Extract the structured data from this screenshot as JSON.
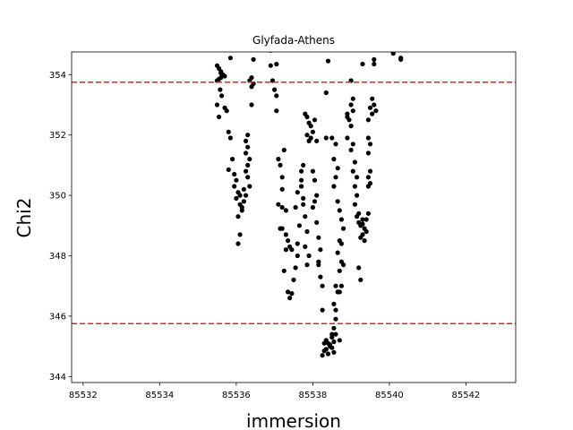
{
  "chart_data": {
    "type": "scatter",
    "title": "Glyfada-Athens",
    "xlabel": "immersion",
    "ylabel": "Chi2",
    "xlim": [
      85531.7,
      85543.3
    ],
    "ylim": [
      343.8,
      354.75
    ],
    "xticks": [
      85532,
      85534,
      85536,
      85538,
      85540,
      85542
    ],
    "yticks": [
      344,
      346,
      348,
      350,
      352,
      354
    ],
    "grid": false,
    "legend": "none",
    "marker_color": "#000000",
    "hlines": [
      {
        "y": 353.75,
        "color": "#d62728",
        "style": "dashed"
      },
      {
        "y": 345.75,
        "color": "#d62728",
        "style": "dashed"
      }
    ],
    "points": [
      [
        85535.5,
        354.3
      ],
      [
        85535.55,
        354.2
      ],
      [
        85535.6,
        354.1
      ],
      [
        85535.65,
        354.0
      ],
      [
        85535.6,
        353.9
      ],
      [
        85535.55,
        353.85
      ],
      [
        85535.7,
        353.95
      ],
      [
        85535.5,
        353.8
      ],
      [
        85535.58,
        353.5
      ],
      [
        85535.62,
        353.3
      ],
      [
        85535.5,
        353.0
      ],
      [
        85535.7,
        352.9
      ],
      [
        85535.75,
        352.8
      ],
      [
        85535.55,
        352.6
      ],
      [
        85535.85,
        354.55
      ],
      [
        85535.6,
        354.05
      ],
      [
        85535.8,
        352.1
      ],
      [
        85535.85,
        351.9
      ],
      [
        85535.9,
        351.2
      ],
      [
        85535.95,
        350.7
      ],
      [
        85535.8,
        350.85
      ],
      [
        85536.0,
        350.5
      ],
      [
        85535.95,
        350.3
      ],
      [
        85536.05,
        350.1
      ],
      [
        85536.1,
        350.0
      ],
      [
        85536.0,
        349.9
      ],
      [
        85536.1,
        349.7
      ],
      [
        85536.15,
        349.5
      ],
      [
        85536.05,
        349.3
      ],
      [
        85536.2,
        349.8
      ],
      [
        85536.2,
        350.2
      ],
      [
        85536.25,
        350.0
      ],
      [
        85536.1,
        348.7
      ],
      [
        85536.05,
        348.4
      ],
      [
        85536.15,
        349.6
      ],
      [
        85536.3,
        352.0
      ],
      [
        85536.25,
        351.8
      ],
      [
        85536.3,
        351.6
      ],
      [
        85536.25,
        351.4
      ],
      [
        85536.35,
        351.2
      ],
      [
        85536.3,
        351.0
      ],
      [
        85536.25,
        350.8
      ],
      [
        85536.3,
        350.6
      ],
      [
        85536.35,
        350.3
      ],
      [
        85536.4,
        353.9
      ],
      [
        85536.45,
        353.7
      ],
      [
        85536.4,
        353.6
      ],
      [
        85536.45,
        354.5
      ],
      [
        85536.4,
        353.0
      ],
      [
        85536.35,
        353.8
      ],
      [
        85536.9,
        354.3
      ],
      [
        85536.95,
        353.8
      ],
      [
        85537.05,
        354.35
      ],
      [
        85537.0,
        353.5
      ],
      [
        85537.05,
        353.3
      ],
      [
        85537.05,
        352.8
      ],
      [
        85536.9,
        354.8
      ],
      [
        85537.1,
        351.2
      ],
      [
        85537.15,
        351.0
      ],
      [
        85537.2,
        350.6
      ],
      [
        85537.25,
        351.5
      ],
      [
        85537.1,
        349.7
      ],
      [
        85537.2,
        349.6
      ],
      [
        85537.3,
        348.7
      ],
      [
        85537.35,
        348.5
      ],
      [
        85537.4,
        348.3
      ],
      [
        85537.45,
        348.2
      ],
      [
        85537.3,
        348.2
      ],
      [
        85537.2,
        348.9
      ],
      [
        85537.25,
        347.5
      ],
      [
        85537.35,
        346.8
      ],
      [
        85537.45,
        346.75
      ],
      [
        85537.4,
        346.6
      ],
      [
        85537.5,
        347.2
      ],
      [
        85537.55,
        347.6
      ],
      [
        85537.6,
        348.4
      ],
      [
        85537.6,
        348.0
      ],
      [
        85537.65,
        349.0
      ],
      [
        85537.55,
        349.6
      ],
      [
        85537.6,
        350.1
      ],
      [
        85537.7,
        350.5
      ],
      [
        85537.75,
        351.0
      ],
      [
        85537.7,
        350.8
      ],
      [
        85537.75,
        349.9
      ],
      [
        85537.8,
        349.3
      ],
      [
        85537.85,
        348.8
      ],
      [
        85537.9,
        348.0
      ],
      [
        85537.85,
        347.7
      ],
      [
        85537.8,
        348.3
      ],
      [
        85537.75,
        349.7
      ],
      [
        85537.7,
        350.3
      ],
      [
        85537.2,
        350.2
      ],
      [
        85537.3,
        349.5
      ],
      [
        85537.15,
        348.9
      ],
      [
        85537.8,
        352.7
      ],
      [
        85537.85,
        352.6
      ],
      [
        85537.9,
        352.4
      ],
      [
        85537.95,
        352.3
      ],
      [
        85538.0,
        352.1
      ],
      [
        85537.9,
        351.8
      ],
      [
        85538.05,
        352.5
      ],
      [
        85537.95,
        351.9
      ],
      [
        85537.85,
        352.0
      ],
      [
        85538.0,
        350.8
      ],
      [
        85538.05,
        350.5
      ],
      [
        85538.1,
        350.0
      ],
      [
        85538.0,
        349.6
      ],
      [
        85538.1,
        349.1
      ],
      [
        85538.15,
        348.6
      ],
      [
        85538.2,
        348.2
      ],
      [
        85538.15,
        347.8
      ],
      [
        85538.2,
        347.3
      ],
      [
        85538.25,
        347.0
      ],
      [
        85538.05,
        349.8
      ],
      [
        85538.1,
        351.8
      ],
      [
        85538.25,
        346.2
      ],
      [
        85538.15,
        347.7
      ],
      [
        85538.4,
        354.45
      ],
      [
        85538.35,
        353.4
      ],
      [
        85538.35,
        351.9
      ],
      [
        85538.5,
        351.9
      ],
      [
        85538.6,
        351.7
      ],
      [
        85538.55,
        351.2
      ],
      [
        85538.65,
        350.9
      ],
      [
        85538.6,
        350.6
      ],
      [
        85538.55,
        350.3
      ],
      [
        85538.65,
        349.8
      ],
      [
        85538.7,
        349.5
      ],
      [
        85538.75,
        349.2
      ],
      [
        85538.8,
        348.9
      ],
      [
        85538.7,
        348.5
      ],
      [
        85538.65,
        348.1
      ],
      [
        85538.75,
        347.8
      ],
      [
        85538.7,
        347.5
      ],
      [
        85538.6,
        347.0
      ],
      [
        85538.65,
        346.8
      ],
      [
        85538.55,
        346.4
      ],
      [
        85538.6,
        346.2
      ],
      [
        85538.6,
        345.9
      ],
      [
        85538.55,
        345.6
      ],
      [
        85538.6,
        345.4
      ],
      [
        85538.5,
        345.3
      ],
      [
        85538.55,
        345.15
      ],
      [
        85538.45,
        345.0
      ],
      [
        85538.4,
        345.1
      ],
      [
        85538.35,
        344.9
      ],
      [
        85538.3,
        344.85
      ],
      [
        85538.25,
        344.7
      ],
      [
        85538.5,
        344.95
      ],
      [
        85538.4,
        344.75
      ],
      [
        85538.35,
        345.2
      ],
      [
        85538.3,
        345.1
      ],
      [
        85538.7,
        345.2
      ],
      [
        85538.55,
        344.8
      ],
      [
        85538.45,
        345.05
      ],
      [
        85538.5,
        345.4
      ],
      [
        85538.7,
        346.8
      ],
      [
        85538.75,
        347.0
      ],
      [
        85538.8,
        347.7
      ],
      [
        85538.75,
        348.4
      ],
      [
        85538.9,
        352.7
      ],
      [
        85538.95,
        352.5
      ],
      [
        85539.0,
        352.3
      ],
      [
        85539.05,
        353.2
      ],
      [
        85539.0,
        353.0
      ],
      [
        85539.0,
        353.8
      ],
      [
        85538.9,
        351.9
      ],
      [
        85539.05,
        351.7
      ],
      [
        85539.0,
        351.5
      ],
      [
        85539.1,
        351.1
      ],
      [
        85539.05,
        350.8
      ],
      [
        85539.15,
        350.6
      ],
      [
        85539.1,
        350.3
      ],
      [
        85539.15,
        350.0
      ],
      [
        85539.1,
        349.7
      ],
      [
        85539.15,
        349.3
      ],
      [
        85539.2,
        349.1
      ],
      [
        85539.25,
        349.0
      ],
      [
        85539.3,
        349.2
      ],
      [
        85539.35,
        348.9
      ],
      [
        85539.3,
        348.7
      ],
      [
        85539.25,
        348.6
      ],
      [
        85539.2,
        349.4
      ],
      [
        85539.4,
        349.2
      ],
      [
        85539.45,
        349.4
      ],
      [
        85539.3,
        349.05
      ],
      [
        85539.35,
        348.5
      ],
      [
        85539.2,
        347.6
      ],
      [
        85539.25,
        347.2
      ],
      [
        85539.4,
        348.8
      ],
      [
        85538.9,
        352.6
      ],
      [
        85539.05,
        352.8
      ],
      [
        85539.3,
        354.35
      ],
      [
        85539.45,
        352.5
      ],
      [
        85539.5,
        352.9
      ],
      [
        85539.55,
        353.2
      ],
      [
        85539.6,
        353.0
      ],
      [
        85539.55,
        352.7
      ],
      [
        85539.5,
        351.7
      ],
      [
        85539.45,
        351.4
      ],
      [
        85539.5,
        350.8
      ],
      [
        85539.45,
        350.6
      ],
      [
        85539.5,
        350.4
      ],
      [
        85539.45,
        350.3
      ],
      [
        85539.6,
        354.5
      ],
      [
        85539.6,
        354.35
      ],
      [
        85539.65,
        352.8
      ],
      [
        85539.45,
        351.9
      ],
      [
        85540.1,
        354.7
      ],
      [
        85540.3,
        354.55
      ],
      [
        85540.3,
        354.5
      ]
    ]
  }
}
